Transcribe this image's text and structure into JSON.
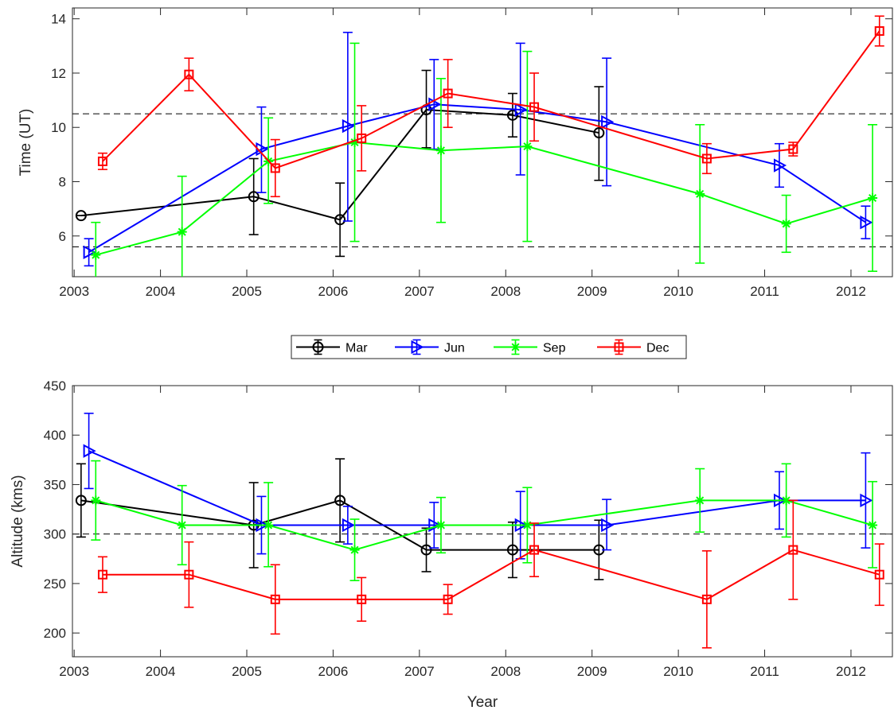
{
  "chart_data": [
    {
      "type": "line",
      "ylabel": "Time (UT)",
      "xlabel": "",
      "xlim": [
        2002.98,
        2012.48
      ],
      "ylim": [
        4.5,
        14.4
      ],
      "xticks": [
        2003,
        2004,
        2005,
        2006,
        2007,
        2008,
        2009,
        2010,
        2011,
        2012
      ],
      "yticks": [
        6,
        8,
        10,
        12,
        14
      ],
      "reference_lines": [
        5.6,
        10.5
      ],
      "series": [
        {
          "name": "Mar",
          "color": "#000000",
          "marker": "circle",
          "x": [
            2003.08,
            2005.08,
            2006.08,
            2007.08,
            2008.08,
            2009.08
          ],
          "y": [
            6.75,
            7.45,
            6.6,
            10.65,
            10.45,
            9.8
          ],
          "err_low": [
            6.75,
            6.05,
            5.25,
            9.25,
            9.65,
            8.05
          ],
          "err_high": [
            6.75,
            8.85,
            7.95,
            12.1,
            11.25,
            11.5
          ]
        },
        {
          "name": "Jun",
          "color": "#0000ff",
          "marker": "triangle-right",
          "x": [
            2003.17,
            2005.17,
            2006.17,
            2007.17,
            2008.17,
            2009.17,
            2011.17,
            2012.17
          ],
          "y": [
            5.4,
            9.2,
            10.05,
            10.85,
            10.65,
            10.2,
            8.6,
            6.5
          ],
          "err_low": [
            4.9,
            7.6,
            6.55,
            9.2,
            8.25,
            7.85,
            7.8,
            5.9
          ],
          "err_high": [
            5.9,
            10.75,
            13.5,
            12.5,
            13.1,
            12.55,
            9.4,
            7.1
          ]
        },
        {
          "name": "Sep",
          "color": "#00ff00",
          "marker": "asterisk",
          "x": [
            2003.25,
            2004.25,
            2005.25,
            2006.25,
            2007.25,
            2008.25,
            2010.25,
            2011.25,
            2012.25
          ],
          "y": [
            5.3,
            6.15,
            8.75,
            9.45,
            9.15,
            9.3,
            7.55,
            6.45,
            7.4
          ],
          "err_low": [
            4.1,
            4.1,
            7.2,
            5.8,
            6.5,
            5.8,
            5.0,
            5.4,
            4.7
          ],
          "err_high": [
            6.5,
            8.2,
            10.35,
            13.1,
            11.8,
            12.8,
            10.1,
            7.5,
            10.1
          ]
        },
        {
          "name": "Dec",
          "color": "#ff0000",
          "marker": "square",
          "x": [
            2003.33,
            2004.33,
            2005.33,
            2006.33,
            2007.33,
            2008.33,
            2010.33,
            2011.33,
            2012.33
          ],
          "y": [
            8.75,
            11.95,
            8.5,
            9.6,
            11.25,
            10.75,
            8.85,
            9.2,
            13.55
          ],
          "err_low": [
            8.45,
            11.35,
            7.45,
            8.4,
            10.0,
            9.5,
            8.3,
            8.95,
            13.0
          ],
          "err_high": [
            9.05,
            12.55,
            9.55,
            10.8,
            12.5,
            12.0,
            9.4,
            9.45,
            14.1
          ]
        }
      ]
    },
    {
      "type": "line",
      "ylabel": "Altitude (kms)",
      "xlabel": "Year",
      "xlim": [
        2002.98,
        2012.48
      ],
      "ylim": [
        176,
        450
      ],
      "xticks": [
        2003,
        2004,
        2005,
        2006,
        2007,
        2008,
        2009,
        2010,
        2011,
        2012
      ],
      "yticks": [
        200,
        250,
        300,
        350,
        400,
        450
      ],
      "reference_lines": [
        300
      ],
      "series": [
        {
          "name": "Mar",
          "color": "#000000",
          "marker": "circle",
          "x": [
            2003.08,
            2005.08,
            2006.08,
            2007.08,
            2008.08,
            2009.08
          ],
          "y": [
            334,
            309,
            334,
            284,
            284,
            284
          ],
          "err_low": [
            297,
            266,
            292,
            262,
            256,
            254
          ],
          "err_high": [
            371,
            352,
            376,
            306,
            312,
            314
          ]
        },
        {
          "name": "Jun",
          "color": "#0000ff",
          "marker": "triangle-right",
          "x": [
            2003.17,
            2005.17,
            2006.17,
            2007.17,
            2008.17,
            2009.17,
            2011.17,
            2012.17
          ],
          "y": [
            384,
            309,
            309,
            309,
            309,
            309,
            334,
            334
          ],
          "err_low": [
            346,
            280,
            290,
            286,
            275,
            284,
            305,
            286
          ],
          "err_high": [
            422,
            338,
            328,
            332,
            343,
            335,
            363,
            382
          ]
        },
        {
          "name": "Sep",
          "color": "#00ff00",
          "marker": "asterisk",
          "x": [
            2003.25,
            2004.25,
            2005.25,
            2006.25,
            2007.25,
            2008.25,
            2010.25,
            2011.25,
            2012.25
          ],
          "y": [
            334,
            309,
            309,
            284,
            309,
            309,
            334,
            334,
            309
          ],
          "err_low": [
            294,
            269,
            267,
            253,
            281,
            271,
            302,
            297,
            266
          ],
          "err_high": [
            374,
            349,
            352,
            315,
            337,
            347,
            366,
            371,
            353
          ]
        },
        {
          "name": "Dec",
          "color": "#ff0000",
          "marker": "square",
          "x": [
            2003.33,
            2004.33,
            2005.33,
            2006.33,
            2007.33,
            2008.33,
            2010.33,
            2011.33,
            2012.33
          ],
          "y": [
            259,
            259,
            234,
            234,
            234,
            284,
            234,
            284,
            259
          ],
          "err_low": [
            241,
            226,
            199,
            212,
            219,
            257,
            185,
            234,
            228
          ],
          "err_high": [
            277,
            292,
            269,
            256,
            249,
            311,
            283,
            334,
            290
          ]
        }
      ]
    }
  ],
  "legend": {
    "placement": "between-panels-center",
    "entries": [
      {
        "label": "Mar",
        "color": "#000000",
        "marker": "circle"
      },
      {
        "label": "Jun",
        "color": "#0000ff",
        "marker": "triangle-right"
      },
      {
        "label": "Sep",
        "color": "#00ff00",
        "marker": "asterisk"
      },
      {
        "label": "Dec",
        "color": "#ff0000",
        "marker": "square"
      }
    ]
  }
}
